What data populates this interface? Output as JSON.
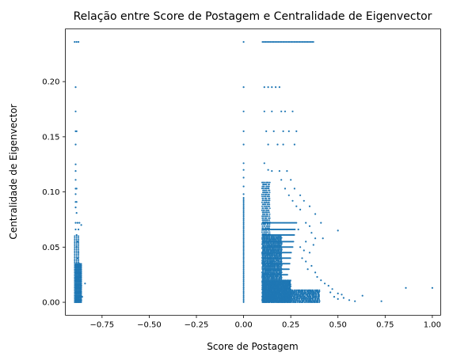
{
  "colors": {
    "point": "#1f77b4",
    "axis": "#000000",
    "background": "#ffffff"
  },
  "chart_data": {
    "type": "scatter",
    "title": "Relação entre Score de Postagem e Centralidade de Eigenvector",
    "xlabel": "Score de Postagem",
    "ylabel": "Centralidade de Eigenvector",
    "xlim": [
      -0.9445,
      1.0445
    ],
    "ylim": [
      -0.0118,
      0.2478
    ],
    "xticks": [
      -0.75,
      -0.5,
      -0.25,
      0.0,
      0.25,
      0.5,
      0.75,
      1.0
    ],
    "xtick_labels": [
      "−0.75",
      "−0.50",
      "−0.25",
      "0.00",
      "0.25",
      "0.50",
      "0.75",
      "1.00"
    ],
    "yticks": [
      0.0,
      0.05,
      0.1,
      0.15,
      0.2
    ],
    "ytick_labels": [
      "0.00",
      "0.05",
      "0.10",
      "0.15",
      "0.20"
    ],
    "grid": false,
    "legend": "none",
    "marker_size": 2,
    "series": [
      {
        "values": [
          [
            -0.895,
            0.236
          ],
          [
            -0.885,
            0.236
          ],
          [
            -0.875,
            0.236
          ],
          [
            -0.89,
            0.195
          ],
          [
            -0.89,
            0.173
          ],
          [
            -0.89,
            0.155
          ],
          [
            -0.885,
            0.155
          ],
          [
            -0.89,
            0.143
          ],
          [
            -0.89,
            0.125
          ],
          [
            -0.89,
            0.119
          ],
          [
            -0.89,
            0.111
          ],
          [
            -0.89,
            0.103
          ],
          [
            -0.885,
            0.103
          ],
          [
            -0.89,
            0.098
          ],
          [
            -0.89,
            0.091
          ],
          [
            -0.885,
            0.091
          ],
          [
            -0.89,
            0.086
          ],
          [
            -0.885,
            0.081
          ],
          [
            -0.89,
            0.072
          ],
          [
            -0.88,
            0.072
          ],
          [
            -0.87,
            0.072
          ],
          [
            -0.86,
            0.07
          ],
          [
            -0.89,
            0.066
          ],
          [
            -0.875,
            0.066
          ],
          [
            -0.885,
            0.061
          ],
          [
            -0.88,
            0.055
          ],
          [
            -0.885,
            0.05
          ],
          [
            -0.875,
            0.045
          ],
          [
            -0.88,
            0.04
          ],
          [
            -0.87,
            0.035
          ],
          [
            -0.875,
            0.03
          ],
          [
            -0.87,
            0.025
          ],
          [
            -0.865,
            0.02
          ],
          [
            -0.86,
            0.015
          ],
          [
            -0.84,
            0.017
          ],
          [
            -0.865,
            0.01
          ],
          [
            -0.855,
            0.005
          ],
          [
            -0.86,
            0.002
          ],
          [
            0.0,
            0.236
          ],
          [
            0.0,
            0.195
          ],
          [
            0.0,
            0.173
          ],
          [
            0.0,
            0.155
          ],
          [
            0.0,
            0.143
          ],
          [
            0.0,
            0.126
          ],
          [
            0.0,
            0.12
          ],
          [
            0.0,
            0.113
          ],
          [
            0.0,
            0.105
          ],
          [
            0.0,
            0.098
          ],
          [
            0.11,
            0.195
          ],
          [
            0.13,
            0.195
          ],
          [
            0.15,
            0.195
          ],
          [
            0.17,
            0.195
          ],
          [
            0.19,
            0.195
          ],
          [
            0.11,
            0.173
          ],
          [
            0.15,
            0.173
          ],
          [
            0.2,
            0.173
          ],
          [
            0.22,
            0.173
          ],
          [
            0.26,
            0.173
          ],
          [
            0.12,
            0.155
          ],
          [
            0.16,
            0.155
          ],
          [
            0.21,
            0.155
          ],
          [
            0.24,
            0.155
          ],
          [
            0.28,
            0.155
          ],
          [
            0.13,
            0.143
          ],
          [
            0.18,
            0.143
          ],
          [
            0.21,
            0.143
          ],
          [
            0.27,
            0.143
          ],
          [
            0.11,
            0.126
          ],
          [
            0.13,
            0.12
          ],
          [
            0.15,
            0.119
          ],
          [
            0.19,
            0.119
          ],
          [
            0.23,
            0.119
          ],
          [
            0.2,
            0.111
          ],
          [
            0.25,
            0.111
          ],
          [
            0.22,
            0.103
          ],
          [
            0.27,
            0.103
          ],
          [
            0.24,
            0.097
          ],
          [
            0.3,
            0.097
          ],
          [
            0.26,
            0.092
          ],
          [
            0.32,
            0.092
          ],
          [
            0.28,
            0.087
          ],
          [
            0.35,
            0.087
          ],
          [
            0.3,
            0.084
          ],
          [
            0.38,
            0.08
          ],
          [
            0.41,
            0.072
          ],
          [
            0.33,
            0.072
          ],
          [
            0.35,
            0.069
          ],
          [
            0.29,
            0.066
          ],
          [
            0.36,
            0.063
          ],
          [
            0.38,
            0.058
          ],
          [
            0.5,
            0.065
          ],
          [
            0.42,
            0.058
          ],
          [
            0.33,
            0.055
          ],
          [
            0.37,
            0.052
          ],
          [
            0.3,
            0.05
          ],
          [
            0.32,
            0.047
          ],
          [
            0.35,
            0.045
          ],
          [
            0.31,
            0.04
          ],
          [
            0.33,
            0.037
          ],
          [
            0.36,
            0.033
          ],
          [
            0.34,
            0.03
          ],
          [
            0.38,
            0.027
          ],
          [
            0.39,
            0.023
          ],
          [
            0.41,
            0.02
          ],
          [
            0.43,
            0.017
          ],
          [
            0.45,
            0.015
          ],
          [
            0.47,
            0.012
          ],
          [
            0.46,
            0.009
          ],
          [
            0.5,
            0.008
          ],
          [
            0.52,
            0.007
          ],
          [
            0.48,
            0.005
          ],
          [
            0.5,
            0.003
          ],
          [
            0.53,
            0.004
          ],
          [
            0.56,
            0.002
          ],
          [
            0.59,
            0.001
          ],
          [
            0.63,
            0.006
          ],
          [
            0.73,
            0.001
          ],
          [
            0.86,
            0.013
          ],
          [
            1.0,
            0.013
          ]
        ]
      }
    ]
  }
}
